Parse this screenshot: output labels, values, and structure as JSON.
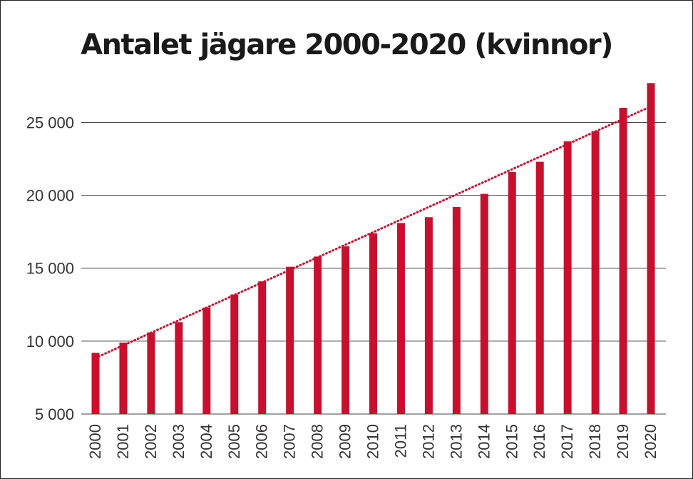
{
  "chart_data": {
    "type": "bar",
    "title": "Antalet jägare 2000-2020 (kvinnor)",
    "xlabel": "",
    "ylabel": "",
    "categories": [
      "2000",
      "2001",
      "2002",
      "2003",
      "2004",
      "2005",
      "2006",
      "2007",
      "2008",
      "2009",
      "2010",
      "2011",
      "2012",
      "2013",
      "2014",
      "2015",
      "2016",
      "2017",
      "2018",
      "2019",
      "2020"
    ],
    "values": [
      9200,
      9900,
      10600,
      11300,
      12300,
      13200,
      14100,
      15100,
      15800,
      16500,
      17400,
      18100,
      18500,
      19200,
      20100,
      21600,
      22300,
      23700,
      24400,
      26000,
      27700
    ],
    "ylim": [
      5000,
      28500
    ],
    "yticks": [
      5000,
      10000,
      15000,
      20000,
      25000
    ],
    "ytick_labels": [
      "5 000",
      "10 000",
      "15 000",
      "20 000",
      "25 000"
    ],
    "trendline": {
      "type": "linear",
      "style": "dotted",
      "start": 8850,
      "end": 26100
    },
    "grid": "horizontal",
    "legend": "none",
    "colors": {
      "bar": "#c8102e",
      "trend": "#c8102e",
      "grid": "#444444",
      "title": "#1a1a1a"
    }
  }
}
